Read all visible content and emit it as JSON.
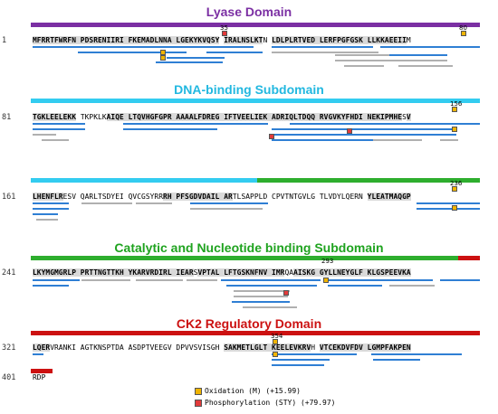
{
  "colors": {
    "lyase": "#7b2fa3",
    "dna": "#33ccf0",
    "catalytic": "#2eae2e",
    "ck2": "#cc1111",
    "oxidation": "#f0b400",
    "phospho": "#e23a3a",
    "peptide_primary": "#2f7fd4",
    "peptide_secondary": "#b0b0b0"
  },
  "domains": {
    "lyase": "Lyase Domain",
    "dna": "DNA-binding Subdomain",
    "catalytic": "Catalytic and Nucleotide binding Subdomain",
    "ck2": "CK2 Regulatory Domain"
  },
  "rows": [
    {
      "num": "1",
      "seq": "MFRRTFWRFN PDSRENIIRI FKEMADLNNA LGEKYKVQSY IRALNSLKTN LDLPLRTVED LERFPGFGSK LLKKAEEIIM"
    },
    {
      "num": "81",
      "seq": "TGKLEELEKK TKPKLKAIQE LTQVHGFGPR AAAALFDREG IFTVEELIEK ADRIQLTDQQ RVGVKYFHDI NEKIPMHESV"
    },
    {
      "num": "161",
      "seq": "LHENFLRESV QARLTSDYEI QVCGSYRRRH PFSGDVDAIL ARTLSAPPLD CPVTNTGVLG TLVDYLQERN YLEATMAQGP"
    },
    {
      "num": "241",
      "seq": "LKYMGMGRLP PRTTNGTTKH YKARVRDIRL IEARSVPTAL LFTGSKNFNV IMRQAAISKG GYLLNEYGLF KLGSPEEVKA"
    },
    {
      "num": "321",
      "seq": "LQERVRANKI AGTKNSPTDA ASDPTVEEGV DPVVSVISGH SAKMETLGLT KEELEVKRVH VTCEKDVFDV LGMPFAKPEN"
    },
    {
      "num": "401",
      "seq": "RDP"
    }
  ],
  "site_labels": [
    "35",
    "80",
    "156",
    "236",
    "293",
    "354"
  ],
  "legend": {
    "oxidation": "Oxidation (M) (+15.99)",
    "phospho": "Phosphorylation (STY) (+79.97)",
    "ox_mark": "O",
    "ph_mark": "P"
  }
}
